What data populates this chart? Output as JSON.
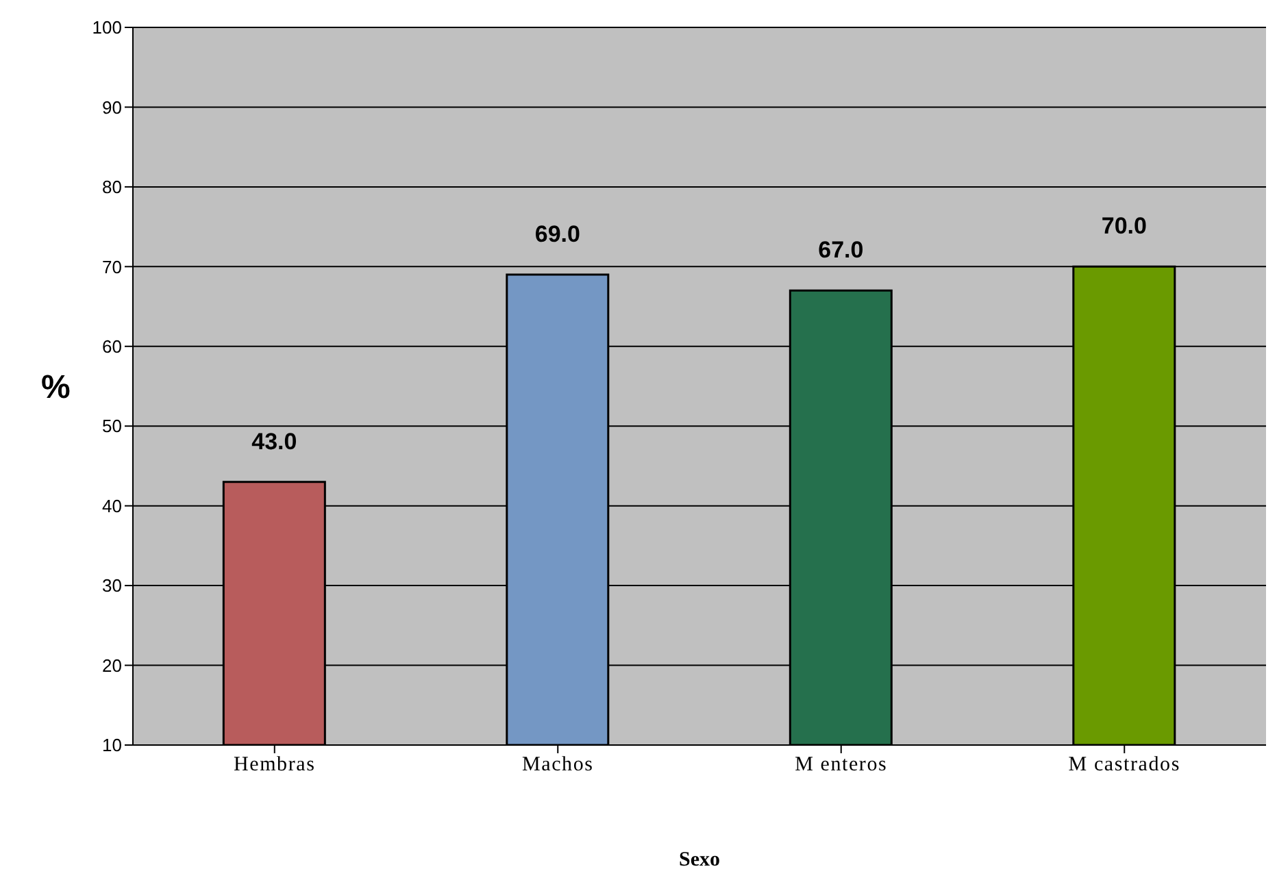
{
  "chart_data": {
    "type": "bar",
    "xlabel": "Sexo",
    "ylabel": "%",
    "categories": [
      "Hembras",
      "Machos",
      "M enteros",
      "M castrados"
    ],
    "values": [
      43,
      69,
      67,
      70
    ],
    "value_labels": [
      "43.0",
      "69.0",
      "67.0",
      "70.0"
    ],
    "colors": [
      "#b85c5c",
      "#7497c4",
      "#25704d",
      "#6a9a00"
    ],
    "ylim": [
      10,
      100
    ],
    "yticks": [
      10,
      20,
      30,
      40,
      50,
      60,
      70,
      80,
      90,
      100
    ],
    "grid": "y"
  }
}
